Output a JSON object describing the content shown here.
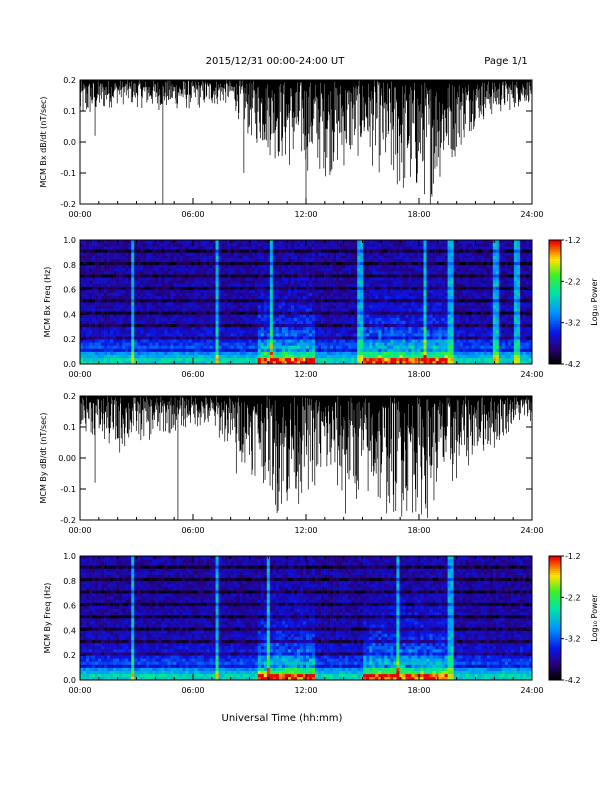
{
  "header": {
    "date_range": "2015/12/31   00:00-24:00 UT",
    "page_label": "Page 1/1"
  },
  "x_axis": {
    "title": "Universal Time (hh:mm)",
    "ticks": [
      "00:00",
      "06:00",
      "12:00",
      "18:00",
      "24:00"
    ]
  },
  "chart_data": [
    {
      "type": "line",
      "ylabel": "MCM Bx dB/dt (nT/sec)",
      "xlim": [
        0,
        24
      ],
      "ylim": [
        -0.2,
        0.2
      ],
      "yticks": [
        "-0.2",
        "-0.1",
        "0.0",
        "0.1",
        "0.2"
      ],
      "ytick_values": [
        -0.2,
        -0.1,
        0.0,
        0.1,
        0.2
      ],
      "note_x_units": "hours UT",
      "envelope_hours": [
        0,
        2,
        4,
        6,
        8,
        9,
        10,
        11,
        12,
        13,
        14,
        15,
        16,
        16.5,
        17,
        17.5,
        18,
        18.5,
        19,
        20,
        21,
        22,
        23,
        24
      ],
      "envelope_min": [
        0.05,
        0.12,
        0.1,
        0.1,
        0.12,
        0.0,
        -0.05,
        -0.1,
        -0.1,
        -0.12,
        -0.1,
        -0.05,
        -0.12,
        -0.18,
        -0.2,
        -0.2,
        -0.2,
        -0.2,
        -0.15,
        -0.05,
        0.05,
        0.08,
        0.1,
        0.13
      ],
      "spikes": [
        {
          "hour": 4.4,
          "value": -0.2
        },
        {
          "hour": 0.8,
          "value": 0.02
        },
        {
          "hour": 8.7,
          "value": -0.1
        },
        {
          "hour": 12.0,
          "value": -0.2
        },
        {
          "hour": 18.6,
          "value": -0.2
        }
      ],
      "color": "#000000"
    },
    {
      "type": "heatmap",
      "ylabel": "MCM Bx Freq (Hz)",
      "xlim": [
        0,
        24
      ],
      "ylim": [
        0.0,
        1.0
      ],
      "yticks": [
        "0.0",
        "0.2",
        "0.4",
        "0.6",
        "0.8",
        "1.0"
      ],
      "ytick_values": [
        0.0,
        0.2,
        0.4,
        0.6,
        0.8,
        1.0
      ],
      "colorbar": {
        "label": "Log₁₀ Power",
        "range": [
          -4.2,
          -1.2
        ],
        "ticks": [
          "-1.2",
          "-2.2",
          "-3.2",
          "-4.2"
        ],
        "tick_values": [
          -1.2,
          -2.2,
          -3.2,
          -4.2
        ]
      },
      "vertical_streaks_hours": [
        2.8,
        7.3,
        10.2,
        14.9,
        18.3,
        19.7,
        22.1,
        23.2
      ],
      "active_hours": [
        [
          9.5,
          12.5
        ],
        [
          15.0,
          19.5
        ]
      ]
    },
    {
      "type": "line",
      "ylabel": "MCM By dB/dt (nT/sec)",
      "xlim": [
        0,
        24
      ],
      "ylim": [
        -0.2,
        0.2
      ],
      "yticks": [
        "-0.2",
        "-0.1",
        "0.00",
        "0.1",
        "0.2"
      ],
      "ytick_values": [
        -0.2,
        -0.1,
        0.0,
        0.1,
        0.2
      ],
      "envelope_hours": [
        0,
        1,
        2,
        3,
        4,
        5,
        6,
        7,
        8,
        9,
        10,
        10.5,
        11,
        12,
        13,
        14,
        15,
        16,
        17,
        18,
        18.5,
        19,
        20,
        21,
        22,
        23,
        24
      ],
      "envelope_min": [
        0.1,
        0.05,
        0.0,
        0.05,
        0.05,
        0.08,
        0.1,
        0.08,
        0.02,
        -0.05,
        -0.1,
        -0.2,
        -0.2,
        -0.12,
        -0.1,
        -0.15,
        -0.15,
        -0.2,
        -0.2,
        -0.2,
        -0.2,
        -0.15,
        -0.1,
        0.0,
        0.02,
        0.1,
        0.12
      ],
      "spikes": [
        {
          "hour": 0.8,
          "value": -0.08
        },
        {
          "hour": 5.2,
          "value": -0.2
        },
        {
          "hour": 8.3,
          "value": -0.05
        },
        {
          "hour": 14.1,
          "value": -0.18
        }
      ],
      "color": "#000000"
    },
    {
      "type": "heatmap",
      "ylabel": "MCM By Freq (Hz)",
      "xlim": [
        0,
        24
      ],
      "ylim": [
        0.0,
        1.0
      ],
      "yticks": [
        "0.0",
        "0.2",
        "0.4",
        "0.6",
        "0.8",
        "1.0"
      ],
      "ytick_values": [
        0.0,
        0.2,
        0.4,
        0.6,
        0.8,
        1.0
      ],
      "colorbar": {
        "label": "Log₁₀ Power",
        "range": [
          -4.2,
          -1.2
        ],
        "ticks": [
          "-1.2",
          "-2.2",
          "-3.2",
          "-4.2"
        ],
        "tick_values": [
          -1.2,
          -2.2,
          -3.2,
          -4.2
        ]
      },
      "vertical_streaks_hours": [
        2.8,
        7.3,
        10.0,
        16.9,
        19.7
      ],
      "active_hours": [
        [
          9.5,
          12.5
        ],
        [
          15.0,
          19.5
        ]
      ]
    }
  ]
}
